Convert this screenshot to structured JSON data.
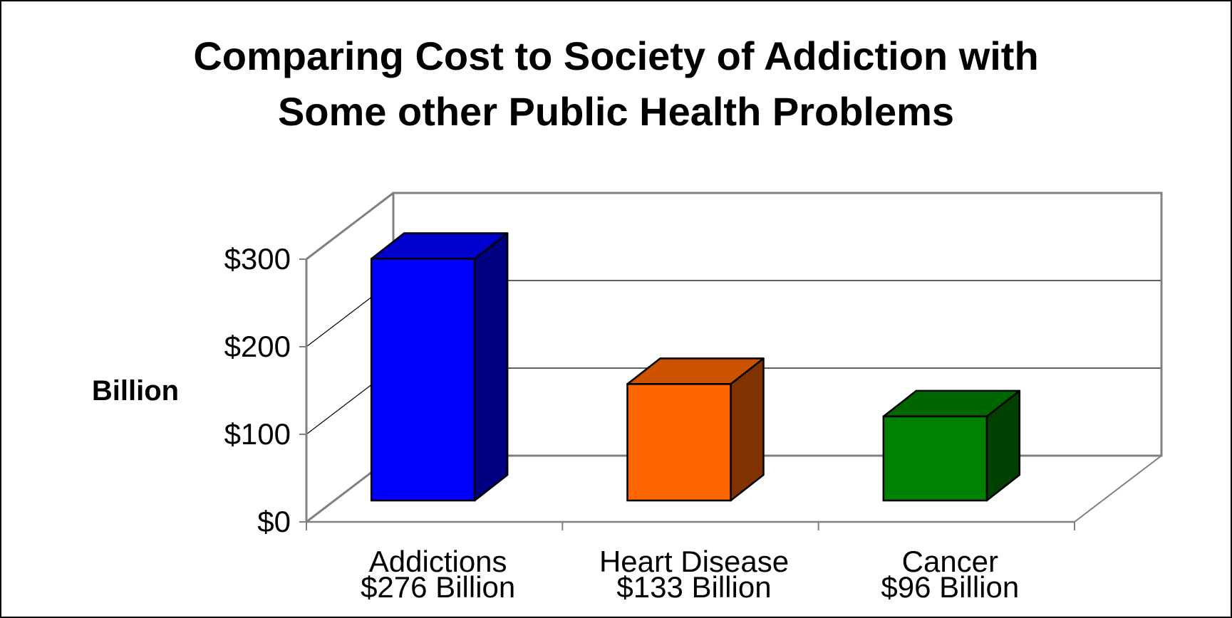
{
  "chart_data": {
    "type": "bar",
    "title_lines": [
      "Comparing Cost to Society of Addiction with",
      "Some other Public Health Problems"
    ],
    "ylabel": "Billion",
    "xlabel": "",
    "categories": [
      "Addictions",
      "Heart Disease",
      "Cancer"
    ],
    "category_sublabels": [
      "$276 Billion",
      "$133 Billion",
      "$96 Billion"
    ],
    "values": [
      276,
      133,
      96
    ],
    "ylim": [
      0,
      300
    ],
    "yticks": [
      0,
      100,
      200,
      300
    ],
    "ytick_labels": [
      "$0",
      "$100",
      "$200",
      "$300"
    ],
    "grid": true,
    "legend": "none",
    "style": "3d-column",
    "colors": {
      "bars": [
        {
          "front": "#0000FF",
          "top": "#0000CC",
          "side": "#000080"
        },
        {
          "front": "#FF6600",
          "top": "#CC5200",
          "side": "#803300"
        },
        {
          "front": "#008000",
          "top": "#006600",
          "side": "#004000"
        }
      ],
      "axis": "#808080",
      "gridline": "#000000",
      "text": "#000000"
    }
  }
}
